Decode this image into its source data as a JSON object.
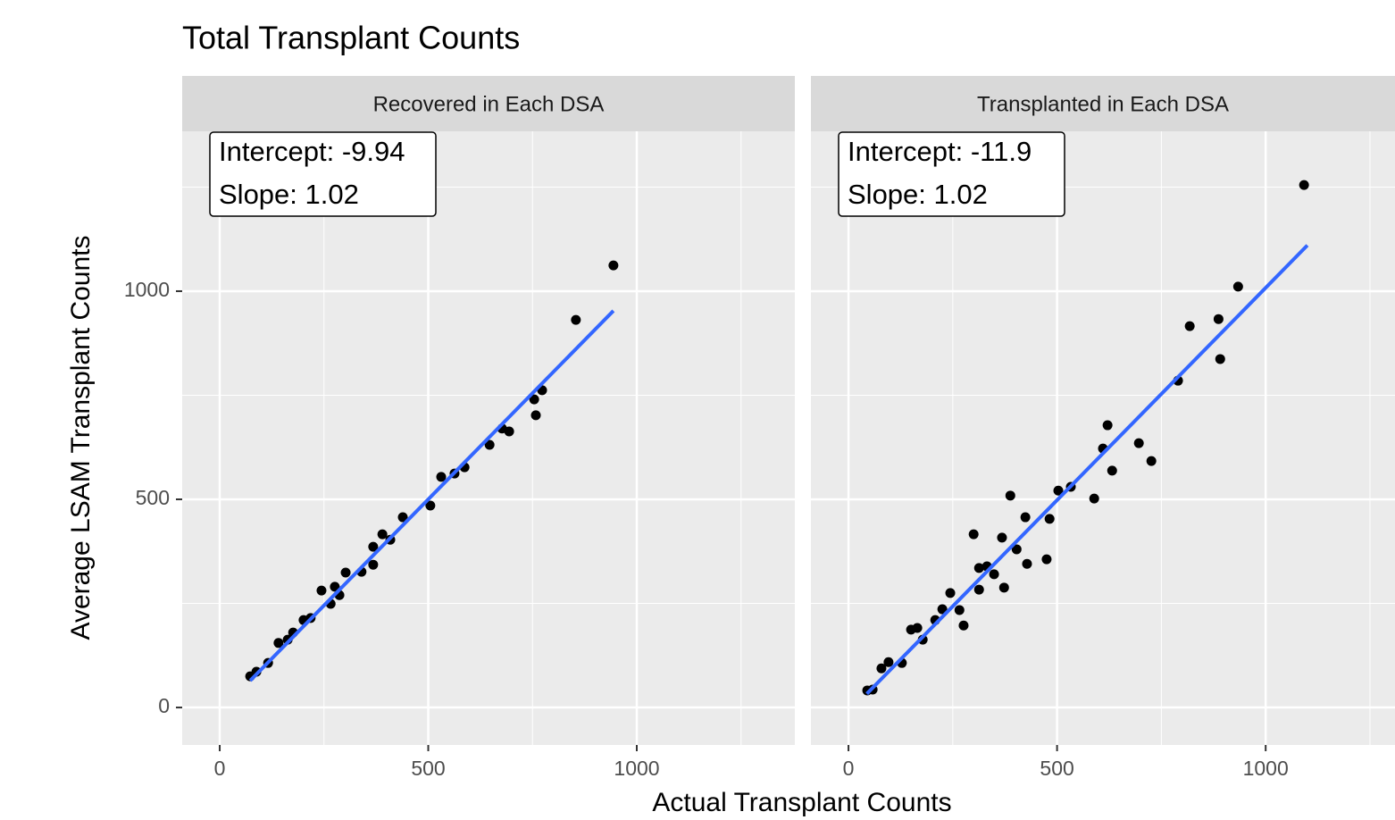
{
  "title": "Total Transplant Counts",
  "x_label": "Actual Transplant Counts",
  "y_label": "Average LSAM Transplant Counts",
  "chart_data": [
    {
      "type": "scatter",
      "facet": "Recovered in Each DSA",
      "annotation": [
        "Intercept: -9.94",
        "Slope: 1.02"
      ],
      "color": "#000000",
      "x": [
        73,
        88,
        116,
        141,
        163,
        176,
        201,
        218,
        244,
        266,
        276,
        287,
        302,
        340,
        368,
        368,
        390,
        409,
        439,
        505,
        531,
        563,
        587,
        647,
        677,
        694,
        754,
        758,
        773,
        854,
        944
      ],
      "y": [
        75,
        86,
        107,
        155,
        163,
        180,
        210,
        215,
        281,
        249,
        290,
        270,
        324,
        326,
        386,
        343,
        416,
        403,
        457,
        485,
        554,
        562,
        577,
        631,
        670,
        663,
        740,
        702,
        762,
        931,
        1062
      ],
      "fit": {
        "color": "#3366ff",
        "x": [
          73,
          944
        ],
        "y": [
          64.5,
          952.9
        ]
      },
      "xlim": [
        -90,
        1379
      ],
      "ylim": [
        -90,
        1384
      ],
      "xticks": [
        0,
        500,
        1000
      ],
      "yticks": [
        0,
        500,
        1000
      ],
      "minor_xticks": [
        250,
        750,
        1250
      ],
      "minor_yticks": [
        250,
        750,
        1250
      ],
      "grid": true
    },
    {
      "type": "scatter",
      "facet": "Transplanted in Each DSA",
      "annotation": [
        "Intercept: -11.9",
        "Slope: 1.02"
      ],
      "color": "#000000",
      "x": [
        45,
        58,
        79,
        96,
        128,
        150,
        165,
        178,
        208,
        225,
        244,
        266,
        276,
        300,
        313,
        313,
        332,
        349,
        368,
        373,
        388,
        403,
        424,
        428,
        475,
        482,
        503,
        533,
        589,
        610,
        621,
        632,
        696,
        726,
        790,
        818,
        887,
        891,
        934,
        1092
      ],
      "y": [
        41,
        43,
        94,
        109,
        107,
        187,
        191,
        163,
        210,
        236,
        275,
        234,
        197,
        416,
        335,
        283,
        339,
        320,
        408,
        288,
        509,
        380,
        457,
        345,
        356,
        453,
        521,
        530,
        502,
        622,
        678,
        569,
        635,
        592,
        785,
        916,
        933,
        837,
        1011,
        1255
      ],
      "fit": {
        "color": "#3366ff",
        "x": [
          44,
          1100
        ],
        "y": [
          33,
          1110.1
        ]
      },
      "xlim": [
        -90,
        1310
      ],
      "ylim": [
        -90,
        1384
      ],
      "xticks": [
        0,
        500,
        1000
      ],
      "yticks": [
        0,
        500,
        1000
      ],
      "minor_xticks": [
        250,
        750,
        1250
      ],
      "minor_yticks": [
        250,
        750,
        1250
      ],
      "grid": true
    }
  ]
}
